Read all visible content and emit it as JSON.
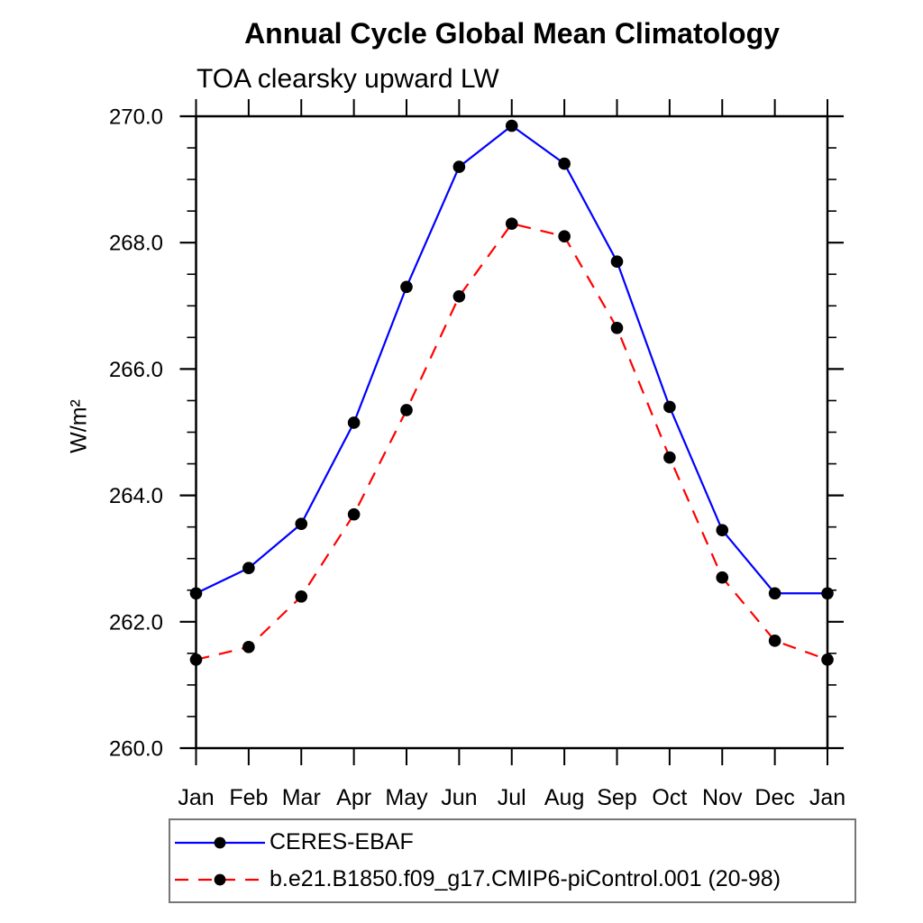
{
  "chart_data": {
    "type": "line",
    "title": "Annual Cycle Global Mean Climatology",
    "subtitle": "TOA clearsky upward LW",
    "ylabel": "W/m²",
    "categories": [
      "Jan",
      "Feb",
      "Mar",
      "Apr",
      "May",
      "Jun",
      "Jul",
      "Aug",
      "Sep",
      "Oct",
      "Nov",
      "Dec",
      "Jan"
    ],
    "ylim": [
      260.0,
      270.0
    ],
    "ytick_major_interval": 2.0,
    "ytick_minor_interval": 0.5,
    "ytick_labels": [
      "260.0",
      "262.0",
      "264.0",
      "266.0",
      "268.0",
      "270.0"
    ],
    "grid": false,
    "legend_position": "bottom",
    "series": [
      {
        "name": "CERES-EBAF",
        "color": "#0000ff",
        "line_style": "solid",
        "marker": "circle",
        "marker_color": "#000000",
        "values": [
          262.45,
          262.85,
          263.55,
          265.15,
          267.3,
          269.2,
          269.85,
          269.25,
          267.7,
          265.4,
          263.45,
          262.45,
          262.45
        ]
      },
      {
        "name": "b.e21.B1850.f09_g17.CMIP6-piControl.001 (20-98)",
        "color": "#ff0000",
        "line_style": "dashed",
        "marker": "circle",
        "marker_color": "#000000",
        "values": [
          261.4,
          261.6,
          262.4,
          263.7,
          265.35,
          267.15,
          268.3,
          268.1,
          266.65,
          264.6,
          262.7,
          261.7,
          261.4
        ]
      }
    ]
  }
}
